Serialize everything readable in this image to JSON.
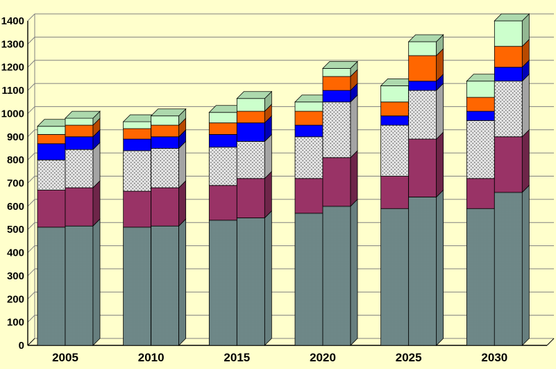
{
  "chart_data": {
    "type": "bar",
    "variant": "3d-stacked-clustered",
    "background": "#FFFFCC",
    "title": "",
    "xlabel": "",
    "ylabel": "",
    "ylim": [
      0,
      1400
    ],
    "ytick_step": 100,
    "y_tick_labels": [
      "0",
      "100",
      "200",
      "300",
      "400",
      "500",
      "600",
      "700",
      "800",
      "900",
      "1000",
      "1100",
      "1200",
      "1300",
      "1400"
    ],
    "categories": [
      "2005",
      "2010",
      "2015",
      "2020",
      "2025",
      "2030"
    ],
    "bars_per_category": 2,
    "grid": true,
    "legend": "none",
    "segments": [
      {
        "name": "teal-textured",
        "color": "#8FB0B0",
        "texture": "grid"
      },
      {
        "name": "magenta",
        "color": "#993366",
        "texture": "none"
      },
      {
        "name": "light-gray-dotted",
        "color": "#E4E4E4",
        "texture": "dots"
      },
      {
        "name": "blue",
        "color": "#0000FF",
        "texture": "none"
      },
      {
        "name": "orange",
        "color": "#FF6600",
        "texture": "none"
      },
      {
        "name": "pale-green",
        "color": "#CCFFCC",
        "texture": "none"
      }
    ],
    "bars": [
      {
        "category": "2005",
        "stacks": [
          [
            510,
            160,
            130,
            70,
            40,
            35
          ],
          [
            515,
            165,
            165,
            55,
            50,
            30
          ]
        ]
      },
      {
        "category": "2010",
        "stacks": [
          [
            510,
            155,
            175,
            50,
            45,
            30
          ],
          [
            515,
            165,
            170,
            50,
            50,
            40
          ]
        ]
      },
      {
        "category": "2015",
        "stacks": [
          [
            540,
            150,
            165,
            55,
            50,
            45
          ],
          [
            550,
            170,
            160,
            80,
            50,
            55
          ]
        ]
      },
      {
        "category": "2020",
        "stacks": [
          [
            570,
            150,
            180,
            50,
            60,
            40
          ],
          [
            600,
            210,
            240,
            50,
            60,
            35
          ]
        ]
      },
      {
        "category": "2025",
        "stacks": [
          [
            590,
            140,
            220,
            40,
            60,
            70
          ],
          [
            640,
            250,
            210,
            40,
            110,
            60
          ]
        ]
      },
      {
        "category": "2030",
        "stacks": [
          [
            590,
            130,
            250,
            40,
            60,
            70
          ],
          [
            660,
            240,
            240,
            60,
            90,
            110
          ]
        ]
      }
    ]
  }
}
